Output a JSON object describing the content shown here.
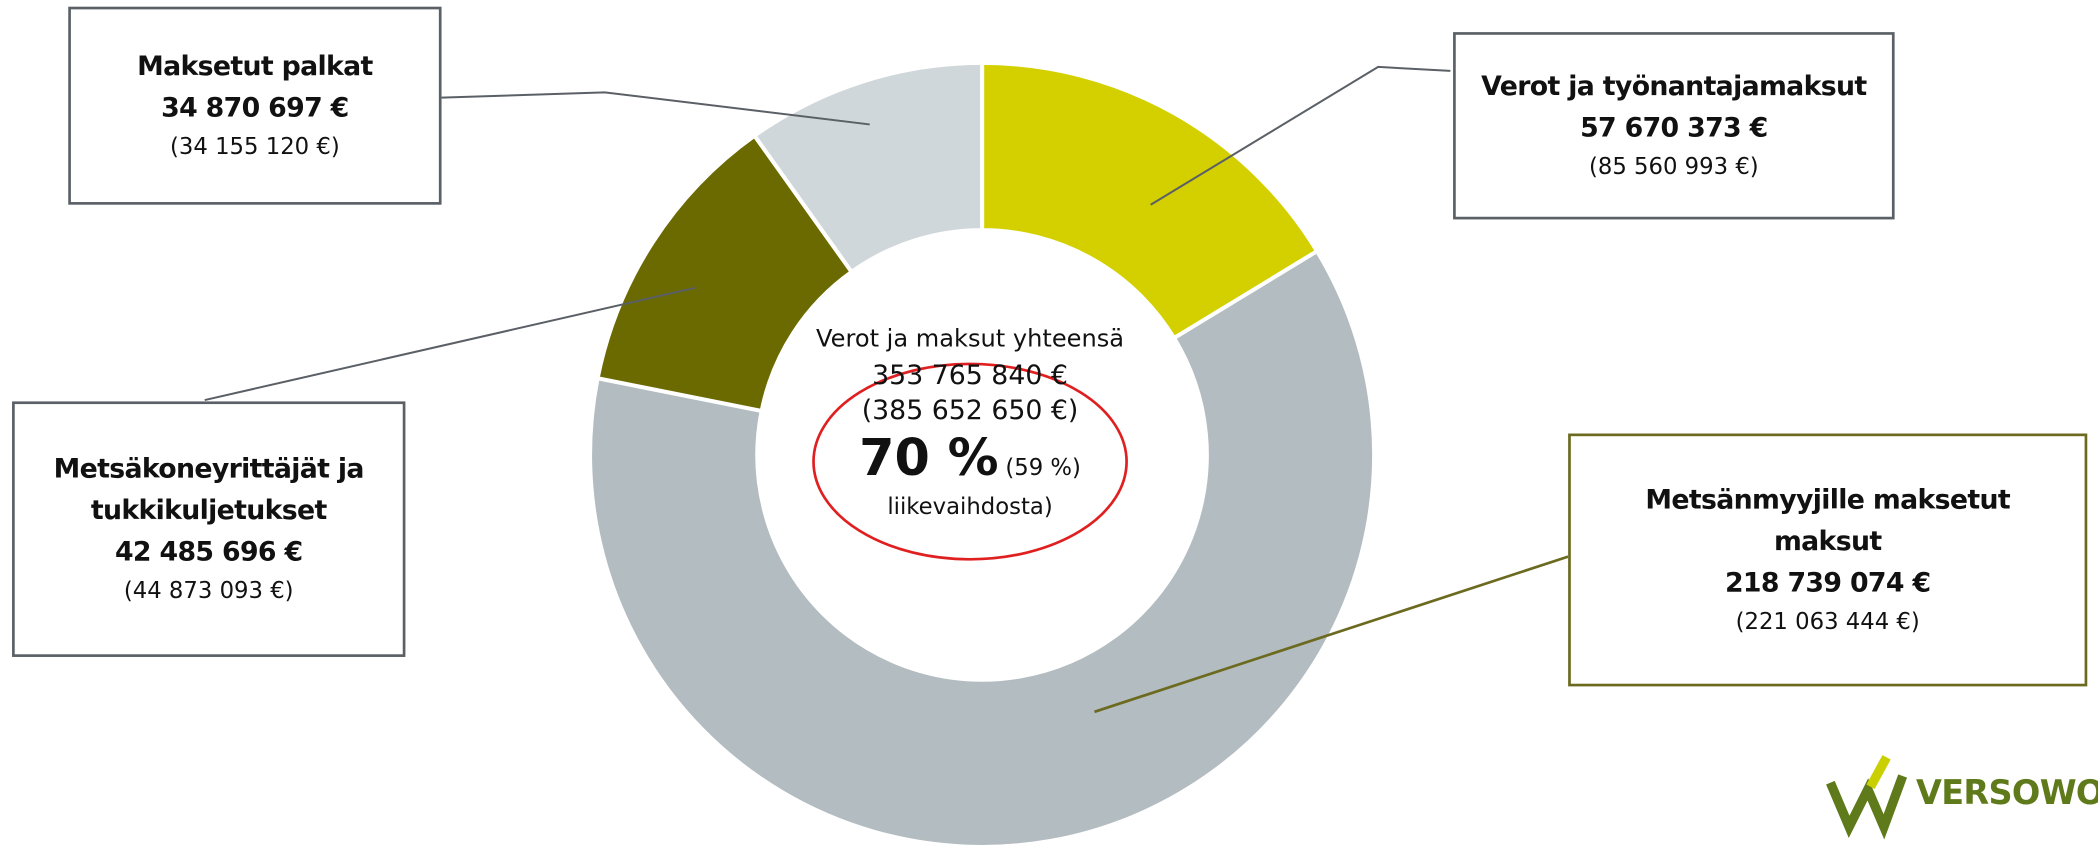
{
  "chart_data": {
    "type": "donut",
    "categories": [
      "Verot ja työnantajamaksut",
      "Metsänmyyjille maksetut maksut",
      "Metsäkoneyrittäjät ja tukkikuljetukset",
      "Maksetut palkat"
    ],
    "values": [
      57670373,
      218739074,
      42485696,
      34870697
    ],
    "value_labels": [
      "57 670 373 €",
      "218 739 074 €",
      "42 485 696 €",
      "34 870 697 €"
    ],
    "previous_labels": [
      "(85 560 993 €)",
      "(221 063 444 €)",
      "(44 873 093 €)",
      "(34 155 120 €)"
    ],
    "colors": [
      "#d4d000",
      "#b3bcc0",
      "#6b6a00",
      "#d0d7da"
    ],
    "center": {
      "title": "Verot ja maksut yhteensä",
      "total": "353 765 840 €",
      "previous_total": "(385 652 650 €)",
      "share": "70 %",
      "previous_share": "(59 %)",
      "share_note": "liikevaihdosta)"
    },
    "logo": "VERSOWO"
  }
}
